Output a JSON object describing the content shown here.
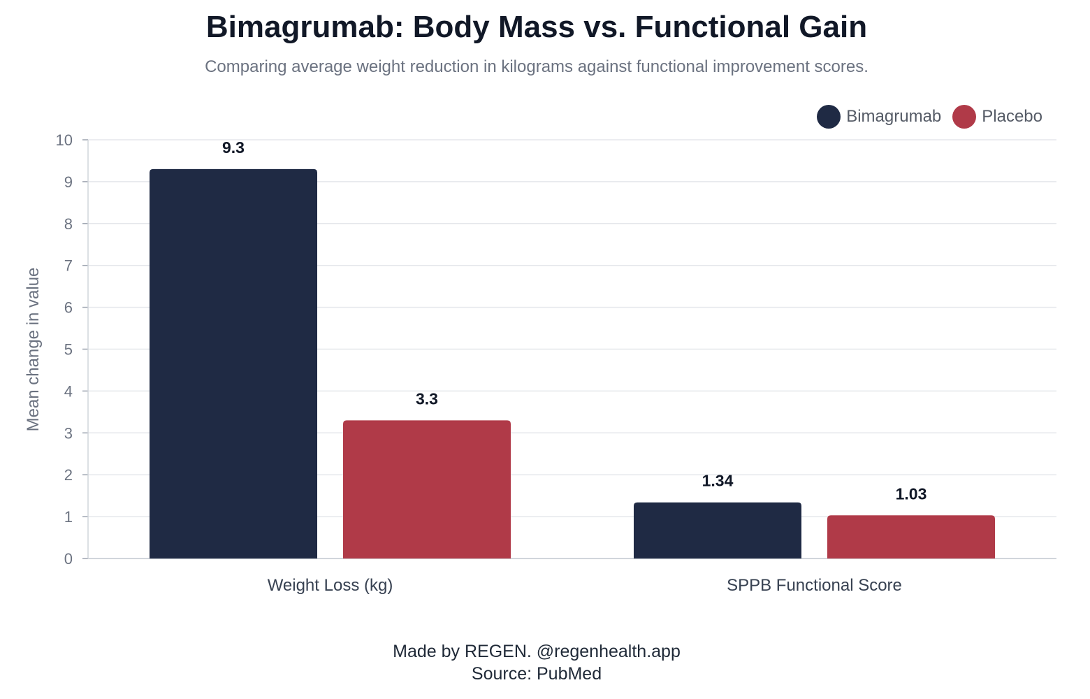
{
  "title": "Bimagrumab: Body Mass vs. Functional Gain",
  "subtitle": "Comparing average weight reduction in kilograms against functional improvement scores.",
  "footer": {
    "credit": "Made by REGEN. @regenhealth.app",
    "source": "Source: PubMed"
  },
  "chart_data": {
    "type": "bar",
    "title": "Bimagrumab: Body Mass vs. Functional Gain",
    "subtitle": "Comparing average weight reduction in kilograms against functional improvement scores.",
    "xlabel": "",
    "ylabel": "Mean change in value",
    "ylim": [
      0,
      10
    ],
    "yticks": [
      0,
      1,
      2,
      3,
      4,
      5,
      6,
      7,
      8,
      9,
      10
    ],
    "grid": true,
    "legend_position": "top-right",
    "categories": [
      "Weight Loss (kg)",
      "SPPB Functional Score"
    ],
    "series": [
      {
        "name": "Bimagrumab",
        "color": "#1f2a44",
        "values": [
          9.3,
          1.34
        ]
      },
      {
        "name": "Placebo",
        "color": "#b03a48",
        "values": [
          3.3,
          1.03
        ]
      }
    ]
  }
}
